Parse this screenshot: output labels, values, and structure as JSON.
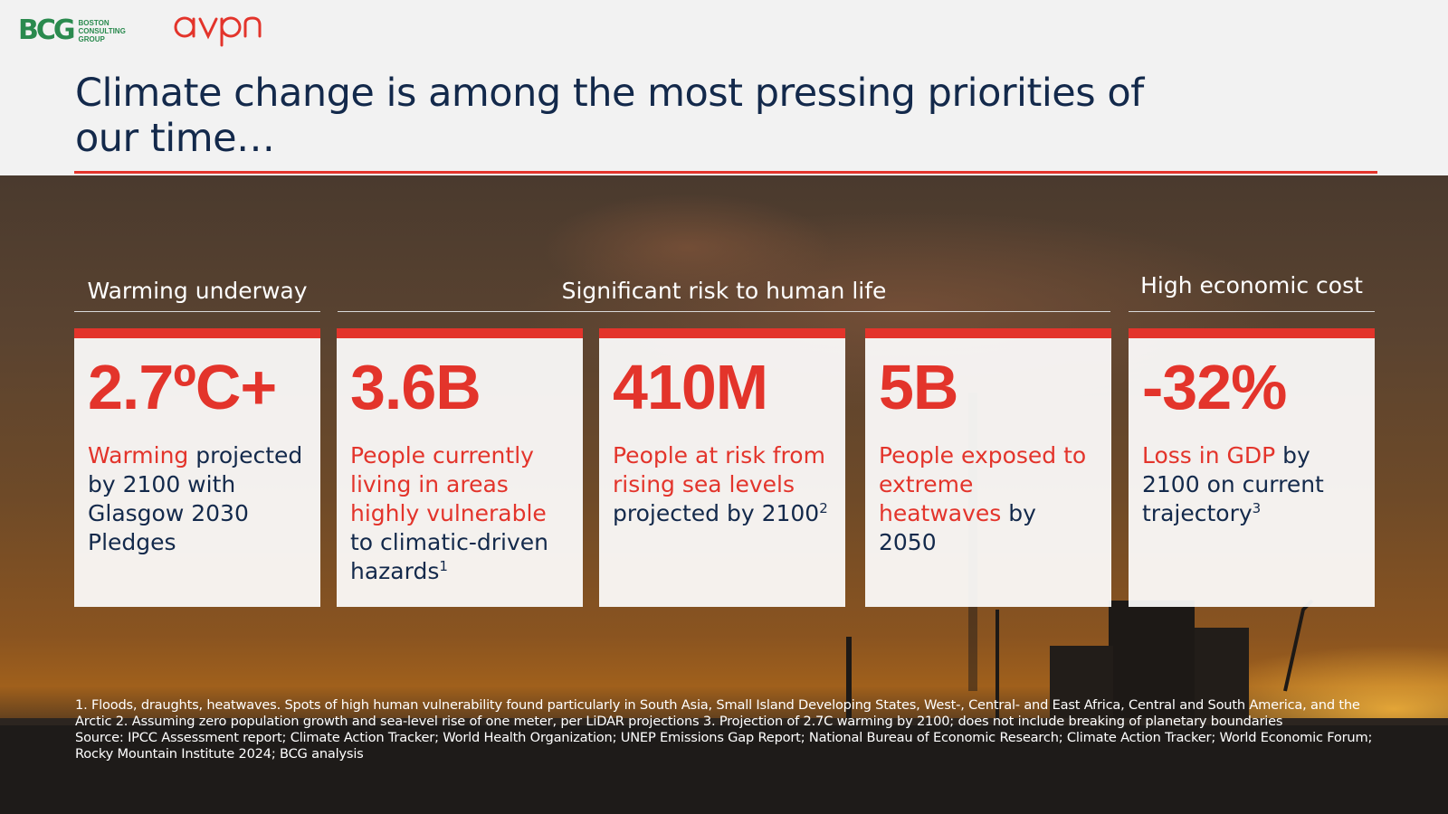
{
  "logos": {
    "bcg_mark": "BCG",
    "bcg_text": "BOSTON\nCONSULTING\nGROUP",
    "avpn_text": "avpn"
  },
  "title": "Climate change is among the most pressing priorities of our time…",
  "sections": {
    "warming": "Warming underway",
    "risk": "Significant risk to human life",
    "economic": "High economic cost"
  },
  "cards": [
    {
      "stat": "2.7ºC+",
      "highlight": "Warming",
      "text": " projected by 2100 with Glasgow 2030 Pledges",
      "sup": ""
    },
    {
      "stat": "3.6B",
      "highlight": "People currently living in areas highly vulnerable",
      "text": " to climatic-driven hazards",
      "sup": "1"
    },
    {
      "stat": "410M",
      "highlight": "People at risk from rising sea levels",
      "text": " projected by 2100",
      "sup": "2"
    },
    {
      "stat": "5B",
      "highlight": "People exposed to extreme heatwaves",
      "text": " by 2050",
      "sup": ""
    },
    {
      "stat": "-32%",
      "highlight": "Loss in GDP",
      "text": " by 2100 on current trajectory",
      "sup": "3"
    }
  ],
  "footnotes": {
    "notes": "1. Floods, draughts, heatwaves. Spots of high human vulnerability found particularly in South Asia, Small Island Developing States, West-, Central- and East Africa, Central and South America, and the Arctic  2. Assuming zero population growth and sea-level rise of one meter, per LiDAR projections  3. Projection of 2.7C warming by 2100; does not include breaking of planetary boundaries",
    "source": "Source: IPCC Assessment report; Climate Action Tracker; World Health Organization; UNEP Emissions Gap Report; National Bureau of Economic Research; Climate Action Tracker; World Economic Forum; Rocky Mountain Institute 2024; BCG analysis"
  },
  "colors": {
    "accent_red": "#e3342b",
    "navy": "#13294b",
    "bcg_green": "#2a8a4e"
  }
}
